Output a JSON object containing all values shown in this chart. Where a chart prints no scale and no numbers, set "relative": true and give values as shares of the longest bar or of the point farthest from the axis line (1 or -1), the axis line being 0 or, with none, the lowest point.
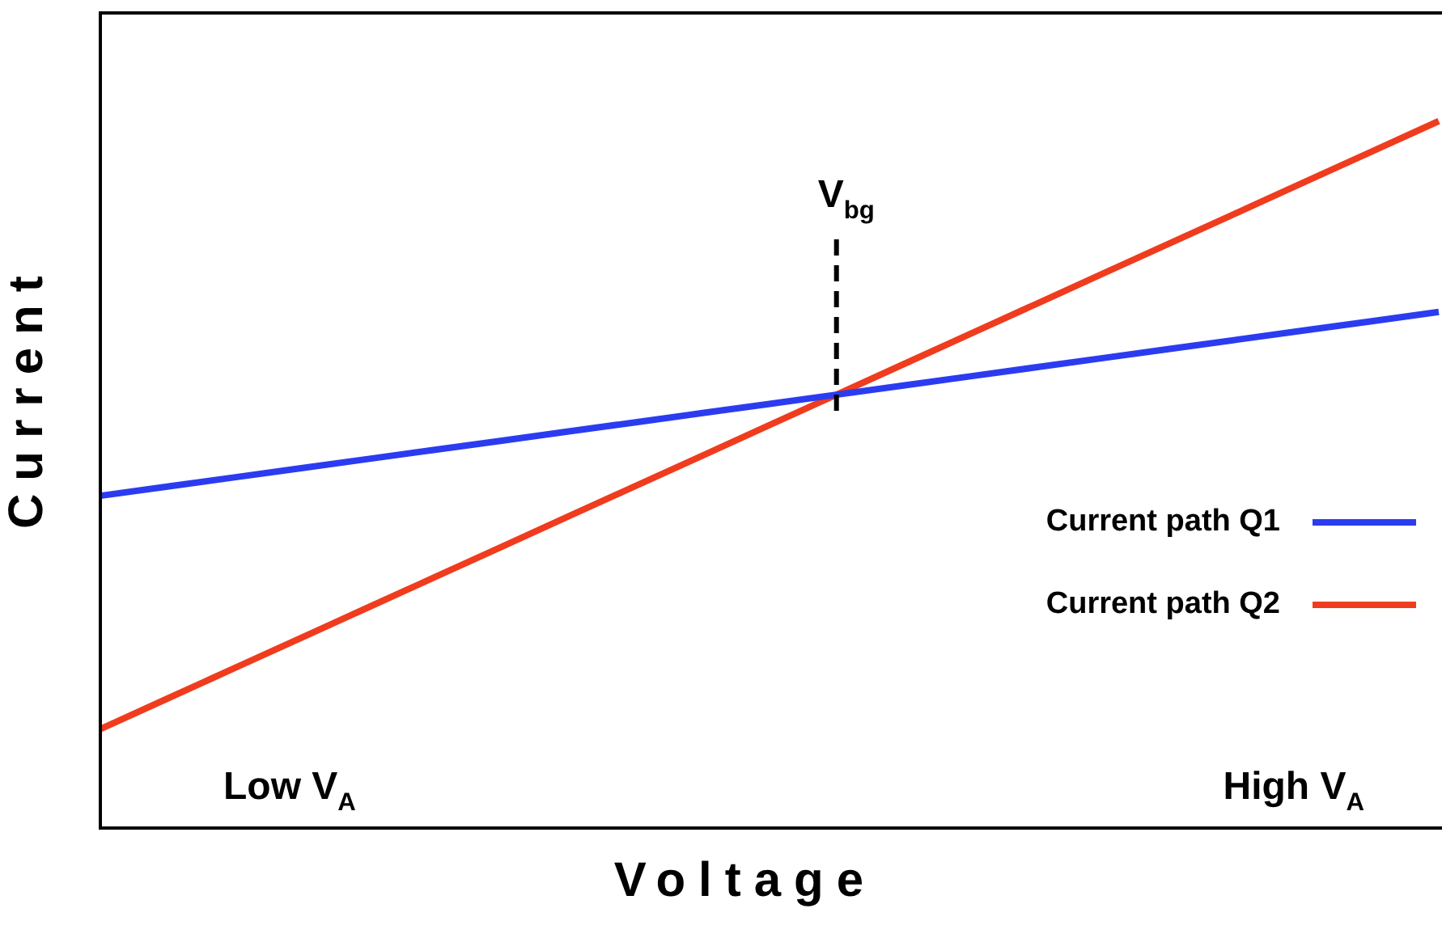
{
  "chart_data": {
    "type": "line",
    "relative": true,
    "xlabel": "Voltage",
    "ylabel": "Current",
    "categories": [
      null,
      null,
      null,
      null,
      null,
      null,
      null,
      null,
      null,
      null,
      null,
      null,
      null,
      null,
      null,
      null,
      null,
      null,
      null,
      null,
      null
    ],
    "series": [
      {
        "name": "Current path Q1",
        "color": "#2b3cf0",
        "values": [
          0.47,
          0.483,
          0.496,
          0.509,
          0.522,
          0.535,
          0.548,
          0.561,
          0.574,
          0.587,
          0.6,
          0.613,
          0.626,
          0.639,
          0.652,
          0.665,
          0.678,
          0.691,
          0.704,
          0.717,
          0.73
        ]
      },
      {
        "name": "Current path Q2",
        "color": "#f03c1e",
        "values": [
          0.14,
          0.183,
          0.226,
          0.269,
          0.312,
          0.355,
          0.398,
          0.441,
          0.484,
          0.527,
          0.57,
          0.613,
          0.656,
          0.699,
          0.742,
          0.785,
          0.828,
          0.871,
          0.914,
          0.957,
          1
        ]
      }
    ],
    "annotations": [
      "Low V$_{A}$",
      "High V$_{A}$",
      "V$_{bg}$"
    ],
    "legend": "right",
    "marker": "none",
    "line_style": "solid"
  }
}
